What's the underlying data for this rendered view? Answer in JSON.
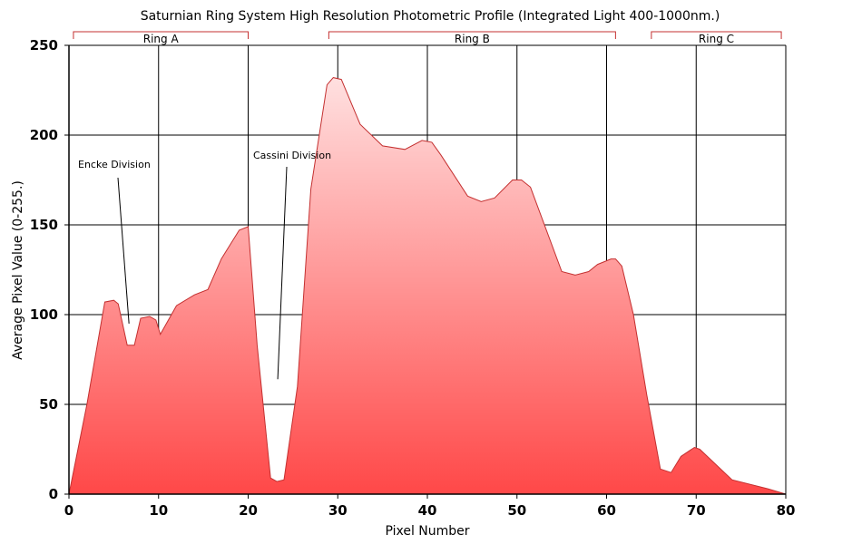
{
  "chart_data": {
    "type": "area",
    "title": "Saturnian Ring System High Resolution Photometric Profile (Integrated Light 400-1000nm.)",
    "xlabel": "Pixel Number",
    "ylabel": "Average Pixel Value (0-255.)",
    "xlim": [
      0,
      80
    ],
    "ylim": [
      0,
      250
    ],
    "xticks": [
      "0",
      "10",
      "20",
      "30",
      "40",
      "50",
      "60",
      "70",
      "80"
    ],
    "yticks": [
      "0",
      "50",
      "100",
      "150",
      "200",
      "250"
    ],
    "grid": true,
    "series": [
      {
        "points": [
          [
            0,
            0
          ],
          [
            2,
            50
          ],
          [
            4,
            107
          ],
          [
            5,
            108
          ],
          [
            5.5,
            106
          ],
          [
            6.5,
            83
          ],
          [
            7.3,
            83
          ],
          [
            8,
            98
          ],
          [
            9,
            99
          ],
          [
            9.7,
            97
          ],
          [
            10.2,
            89
          ],
          [
            12,
            105
          ],
          [
            14,
            111
          ],
          [
            15.5,
            114
          ],
          [
            17,
            131
          ],
          [
            19,
            147
          ],
          [
            20,
            149
          ],
          [
            21,
            83
          ],
          [
            22.5,
            9
          ],
          [
            23.2,
            7
          ],
          [
            24,
            8
          ],
          [
            25.5,
            60
          ],
          [
            27,
            170
          ],
          [
            28.8,
            228
          ],
          [
            29.5,
            232
          ],
          [
            30.4,
            231
          ],
          [
            32.5,
            206
          ],
          [
            35,
            194
          ],
          [
            37.5,
            192
          ],
          [
            39.4,
            197
          ],
          [
            40.5,
            196
          ],
          [
            41.5,
            189
          ],
          [
            44.5,
            166
          ],
          [
            46,
            163
          ],
          [
            47.5,
            165
          ],
          [
            49.5,
            175
          ],
          [
            50.5,
            175
          ],
          [
            51.5,
            171
          ],
          [
            55,
            124
          ],
          [
            56.5,
            122
          ],
          [
            58,
            124
          ],
          [
            59,
            128
          ],
          [
            60.5,
            131
          ],
          [
            61,
            131
          ],
          [
            61.7,
            127
          ],
          [
            63,
            100
          ],
          [
            64.5,
            55
          ],
          [
            66,
            14
          ],
          [
            67.2,
            12
          ],
          [
            68.3,
            21
          ],
          [
            69.8,
            26
          ],
          [
            70.4,
            25
          ],
          [
            74,
            8
          ],
          [
            78,
            3
          ],
          [
            80,
            0
          ]
        ]
      }
    ],
    "regions": [
      {
        "label": "Ring A",
        "x_start": 0.5,
        "x_end": 20
      },
      {
        "label": "Ring B",
        "x_start": 29,
        "x_end": 61
      },
      {
        "label": "Ring C",
        "x_start": 65,
        "x_end": 79.5
      }
    ],
    "annotations": [
      {
        "text": "Encke Division",
        "x": 6.7,
        "y": 95
      },
      {
        "text": "Cassini Division",
        "x": 23.3,
        "y": 64
      }
    ],
    "colors": {
      "fill_top": "#ffe0e0",
      "fill_bottom": "#ff4848",
      "line": "#c43030"
    }
  }
}
